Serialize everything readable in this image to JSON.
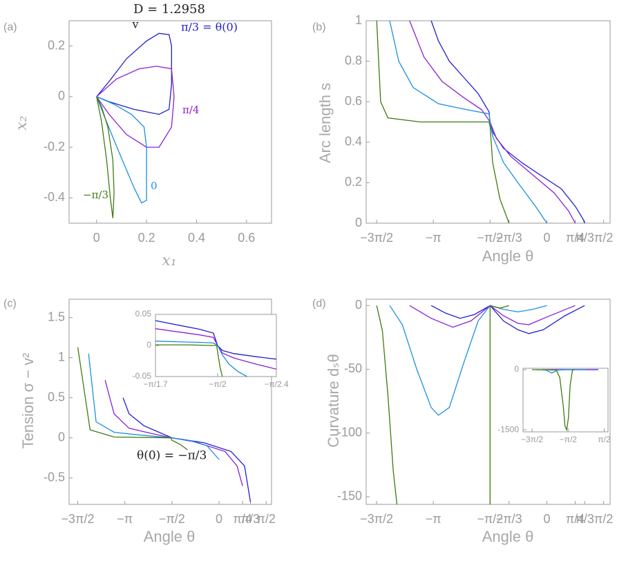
{
  "chart_data": [
    {
      "type": "line",
      "label": "(a)",
      "xlabel": "x₁",
      "ylabel": "x₂",
      "xlim": [
        -0.11,
        0.7
      ],
      "ylim": [
        -0.5,
        0.3
      ],
      "xticks": [
        0,
        0.2,
        0.4,
        0.6
      ],
      "yticks": [
        -0.4,
        -0.2,
        0,
        0.2
      ],
      "annotations": [
        {
          "text": "D = 1.2958",
          "color": "#222222"
        },
        {
          "text": "v",
          "color": "#222222"
        },
        {
          "text": "π/3 = θ(0)",
          "color": "#1f1fd0"
        },
        {
          "text": "π/4",
          "color": "#8a1fd6"
        },
        {
          "text": "0",
          "color": "#1a8fe0"
        },
        {
          "text": "−π/3",
          "color": "#3d7a0f"
        }
      ],
      "series": [
        {
          "color": "#1f1fd0",
          "x": [
            0,
            0.05,
            0.12,
            0.2,
            0.25,
            0.29,
            0.3,
            0.3,
            0.29,
            0.25,
            0.15,
            0.05,
            0
          ],
          "values": [
            0,
            0.06,
            0.15,
            0.22,
            0.25,
            0.245,
            0.2,
            0.05,
            -0.05,
            -0.07,
            -0.05,
            -0.02,
            0
          ]
        },
        {
          "color": "#8a1fd6",
          "x": [
            0,
            0.08,
            0.17,
            0.24,
            0.3,
            0.31,
            0.3,
            0.25,
            0.2,
            0.12,
            0.05,
            0
          ],
          "values": [
            0,
            0.07,
            0.11,
            0.12,
            0.11,
            0,
            -0.12,
            -0.2,
            -0.2,
            -0.15,
            -0.07,
            0
          ]
        },
        {
          "color": "#1a8fe0",
          "x": [
            0,
            0.07,
            0.14,
            0.19,
            0.2,
            0.2,
            0.18,
            0.15,
            0.09,
            0.04,
            0
          ],
          "values": [
            0,
            -0.03,
            -0.07,
            -0.12,
            -0.2,
            -0.41,
            -0.42,
            -0.36,
            -0.22,
            -0.1,
            0
          ]
        },
        {
          "color": "#3d7a0f",
          "x": [
            0,
            0.02,
            0.04,
            0.055,
            0.065,
            0.07,
            0.065,
            0.045,
            0.02,
            0
          ],
          "values": [
            0,
            -0.1,
            -0.25,
            -0.4,
            -0.48,
            -0.38,
            -0.25,
            -0.12,
            -0.04,
            0
          ]
        }
      ]
    },
    {
      "type": "line",
      "label": "(b)",
      "xlabel": "Angle θ",
      "ylabel": "Arc length s",
      "xlim": [
        -5,
        1.75
      ],
      "ylim": [
        0,
        1
      ],
      "xticks": [
        {
          "value": -4.712,
          "label": "−3π/2"
        },
        {
          "value": -3.1416,
          "label": "−π"
        },
        {
          "value": -1.5708,
          "label": "−π/2"
        },
        {
          "value": -1.0472,
          "label": "−π/3"
        },
        0,
        {
          "value": 0.7854,
          "label": "π/4"
        },
        {
          "value": 1.0472,
          "label": "π/3"
        },
        {
          "value": 1.5708,
          "label": "π/2"
        }
      ],
      "xtick_colors": [
        "#999999",
        "#999999",
        "#999999",
        "#3d7a0f",
        "#1a8fe0",
        "#8a1fd6",
        "#1f1fd0",
        "#999999"
      ],
      "yticks": [
        0,
        0.2,
        0.4,
        0.6,
        0.8,
        1
      ],
      "series": [
        {
          "color": "#1f1fd0",
          "x": [
            -3.2,
            -3.0,
            -2.7,
            -2.3,
            -1.9,
            -1.6,
            -1.571,
            -1.5,
            -1.2,
            -0.7,
            -0.2,
            0.4,
            0.8,
            1.0,
            1.047
          ],
          "values": [
            1,
            0.9,
            0.8,
            0.72,
            0.64,
            0.55,
            0.5,
            0.45,
            0.37,
            0.3,
            0.24,
            0.17,
            0.08,
            0.02,
            0
          ]
        },
        {
          "color": "#8a1fd6",
          "x": [
            -3.8,
            -3.4,
            -2.9,
            -2.3,
            -1.8,
            -1.571,
            -1.4,
            -1.0,
            -0.4,
            0.2,
            0.6,
            0.785
          ],
          "values": [
            1,
            0.82,
            0.7,
            0.62,
            0.56,
            0.5,
            0.42,
            0.33,
            0.24,
            0.15,
            0.06,
            0
          ]
        },
        {
          "color": "#1a8fe0",
          "x": [
            -4.35,
            -4.1,
            -3.7,
            -3.0,
            -2.2,
            -1.6,
            -1.571,
            -1.5,
            -1.2,
            -0.8,
            -0.3,
            0
          ],
          "values": [
            1,
            0.8,
            0.67,
            0.59,
            0.56,
            0.54,
            0.5,
            0.43,
            0.3,
            0.2,
            0.08,
            0
          ]
        },
        {
          "color": "#3d7a0f",
          "x": [
            -4.71,
            -4.6,
            -4.4,
            -3.5,
            -1.6,
            -1.571,
            -1.5,
            -1.3,
            -1.047
          ],
          "values": [
            1,
            0.6,
            0.52,
            0.5,
            0.5,
            0.48,
            0.3,
            0.12,
            0
          ]
        }
      ]
    },
    {
      "type": "line",
      "label": "(c)",
      "xlabel": "Angle θ",
      "ylabel": "Tension σ − v²",
      "xlim": [
        -5,
        1.75
      ],
      "ylim": [
        -0.83,
        1.73
      ],
      "xticks": [
        {
          "value": -4.712,
          "label": "−3π/2"
        },
        {
          "value": -3.1416,
          "label": "−π"
        },
        {
          "value": -1.5708,
          "label": "−π/2"
        },
        0,
        {
          "value": 0.7854,
          "label": "π/4"
        },
        {
          "value": 1.0472,
          "label": "π/3"
        },
        {
          "value": 1.5708,
          "label": "π/2"
        }
      ],
      "xtick_colors": [
        "#999999",
        "#999999",
        "#999999",
        "#1a8fe0",
        "#8a1fd6",
        "#1f1fd0",
        "#999999"
      ],
      "yticks": [
        -0.5,
        0,
        0.5,
        1,
        1.5
      ],
      "annotations": [
        {
          "text": "θ(0) = −π/3",
          "color": "#222222"
        }
      ],
      "series": [
        {
          "color": "#1f1fd0",
          "x": [
            -3.2,
            -3.0,
            -2.5,
            -2.0,
            -1.571,
            -0.5,
            0.4,
            0.85,
            1.047
          ],
          "values": [
            0.5,
            0.3,
            0.15,
            0.07,
            0,
            -0.06,
            -0.17,
            -0.35,
            -0.8
          ]
        },
        {
          "color": "#8a1fd6",
          "x": [
            -3.8,
            -3.5,
            -3.0,
            -2.2,
            -1.571,
            -0.8,
            0.2,
            0.6,
            0.785
          ],
          "values": [
            0.72,
            0.3,
            0.12,
            0.05,
            0,
            -0.05,
            -0.17,
            -0.35,
            -0.6
          ]
        },
        {
          "color": "#1a8fe0",
          "x": [
            -4.35,
            -4.1,
            -3.5,
            -2.5,
            -1.571,
            -1.0,
            -0.4,
            0
          ],
          "values": [
            1.05,
            0.2,
            0.07,
            0.03,
            0,
            -0.03,
            -0.1,
            -0.27
          ]
        },
        {
          "color": "#3d7a0f",
          "x": [
            -4.71,
            -4.3,
            -3.5,
            -1.6,
            -1.571,
            -1.3,
            -1.047
          ],
          "values": [
            1.13,
            0.1,
            0.01,
            0,
            -0.03,
            -0.08,
            -0.15
          ]
        }
      ]
    },
    {
      "type": "line",
      "label": "(d)",
      "xlabel": "Angle θ",
      "ylabel": "Curvature dₛθ",
      "xlim": [
        -5,
        1.75
      ],
      "ylim": [
        -156,
        5
      ],
      "xticks": [
        {
          "value": -4.712,
          "label": "−3π/2"
        },
        {
          "value": -3.1416,
          "label": "−π"
        },
        {
          "value": -1.5708,
          "label": "−π/2"
        },
        {
          "value": -1.0472,
          "label": "−π/3"
        },
        0,
        {
          "value": 0.7854,
          "label": "π/4"
        },
        {
          "value": 1.0472,
          "label": "π/3"
        },
        {
          "value": 1.5708,
          "label": "π/2"
        }
      ],
      "xtick_colors": [
        "#999999",
        "#999999",
        "#999999",
        "#3d7a0f",
        "#1a8fe0",
        "#8a1fd6",
        "#1f1fd0",
        "#999999"
      ],
      "yticks": [
        -150,
        -100,
        -50,
        0
      ],
      "series": [
        {
          "color": "#1f1fd0",
          "x": [
            -3.2,
            -2.8,
            -2.4,
            -2.0,
            -1.571,
            -1.2,
            -0.8,
            -0.5,
            -0.1,
            0.5,
            1.047
          ],
          "values": [
            0,
            -6,
            -10,
            -7,
            0,
            -12,
            -19,
            -22,
            -19,
            -8,
            0
          ]
        },
        {
          "color": "#8a1fd6",
          "x": [
            -3.8,
            -3.2,
            -2.6,
            -2.1,
            -1.571,
            -1.2,
            -0.8,
            -0.5,
            0,
            0.785
          ],
          "values": [
            0,
            -10,
            -17,
            -12,
            0,
            -8,
            -14,
            -15,
            -9,
            0
          ]
        },
        {
          "color": "#1a8fe0",
          "x": [
            -4.35,
            -4.0,
            -3.6,
            -3.2,
            -3.0,
            -2.7,
            -2.3,
            -1.9,
            -1.571,
            -1.2,
            -0.8,
            -0.4,
            0
          ],
          "values": [
            0,
            -15,
            -50,
            -80,
            -86,
            -80,
            -45,
            -12,
            0,
            -3,
            -5,
            -3,
            0
          ]
        },
        {
          "color": "#3d7a0f",
          "x": [
            -4.71,
            -4.55,
            -4.4,
            -4.25,
            -4.15,
            null,
            -1.571,
            -1.571,
            -1.3,
            -1.047
          ],
          "values": [
            0,
            -20,
            -70,
            -130,
            -156,
            null,
            -156,
            0,
            -2,
            0
          ]
        }
      ]
    },
    {
      "type": "line",
      "xlim": [
        -1.848,
        -1.309
      ],
      "ylim": [
        -0.05,
        0.05
      ],
      "xticks": [
        {
          "value": -1.848,
          "label": "−π/1.7"
        },
        {
          "value": -1.5708,
          "label": "−π/2"
        },
        {
          "value": -1.309,
          "label": "−π/2.4"
        }
      ],
      "yticks": [
        -0.05,
        0,
        0.05
      ],
      "series": [
        {
          "color": "#1f1fd0",
          "x": [
            -1.848,
            -1.75,
            -1.65,
            -1.59,
            -1.571,
            -1.55,
            -1.5,
            -1.4,
            -1.309
          ],
          "values": [
            0.04,
            0.033,
            0.026,
            0.02,
            0,
            -0.008,
            -0.013,
            -0.018,
            -0.022
          ]
        },
        {
          "color": "#8a1fd6",
          "x": [
            -1.848,
            -1.75,
            -1.65,
            -1.59,
            -1.571,
            -1.55,
            -1.5,
            -1.4,
            -1.309
          ],
          "values": [
            0.027,
            0.022,
            0.017,
            0.013,
            0,
            -0.012,
            -0.02,
            -0.03,
            -0.038
          ]
        },
        {
          "color": "#1a8fe0",
          "x": [
            -1.848,
            -1.75,
            -1.65,
            -1.59,
            -1.571,
            -1.55,
            -1.52,
            -1.48,
            -1.44
          ],
          "values": [
            0.007,
            0.006,
            0.005,
            0.004,
            0,
            -0.015,
            -0.03,
            -0.042,
            -0.05
          ]
        },
        {
          "color": "#3d7a0f",
          "x": [
            -1.848,
            -1.7,
            -1.6,
            -1.575,
            -1.571,
            -1.56,
            -1.55
          ],
          "values": [
            0.001,
            0.001,
            0,
            0,
            -0.01,
            -0.035,
            -0.05
          ]
        }
      ]
    },
    {
      "type": "line",
      "xlim": [
        -5.5,
        1.9
      ],
      "ylim": [
        -1550,
        35
      ],
      "xticks": [
        {
          "value": -4.712,
          "label": "−3π/2"
        },
        {
          "value": -1.5708,
          "label": "−π/2"
        },
        {
          "value": 1.5708,
          "label": "π/2"
        }
      ],
      "yticks": [
        -1500,
        0
      ],
      "series": [
        {
          "color": "#1f1fd0",
          "x": [
            -3.2,
            -1.571,
            1.047
          ],
          "values": [
            0,
            0,
            0
          ]
        },
        {
          "color": "#8a1fd6",
          "x": [
            -3.8,
            -1.571,
            0.785
          ],
          "values": [
            0,
            0,
            0
          ]
        },
        {
          "color": "#1a8fe0",
          "x": [
            -4.35,
            -3.5,
            -3.0,
            -2.5,
            -1.571,
            0
          ],
          "values": [
            0,
            -10,
            -86,
            -10,
            0,
            0
          ]
        },
        {
          "color": "#3d7a0f",
          "x": [
            -4.71,
            -2.6,
            -2.3,
            -2.0,
            -1.85,
            -1.7,
            -1.55,
            -1.4,
            -1.2,
            -1.047
          ],
          "values": [
            0,
            -10,
            -200,
            -900,
            -1400,
            -1500,
            -1200,
            -400,
            -20,
            0
          ]
        }
      ]
    }
  ]
}
